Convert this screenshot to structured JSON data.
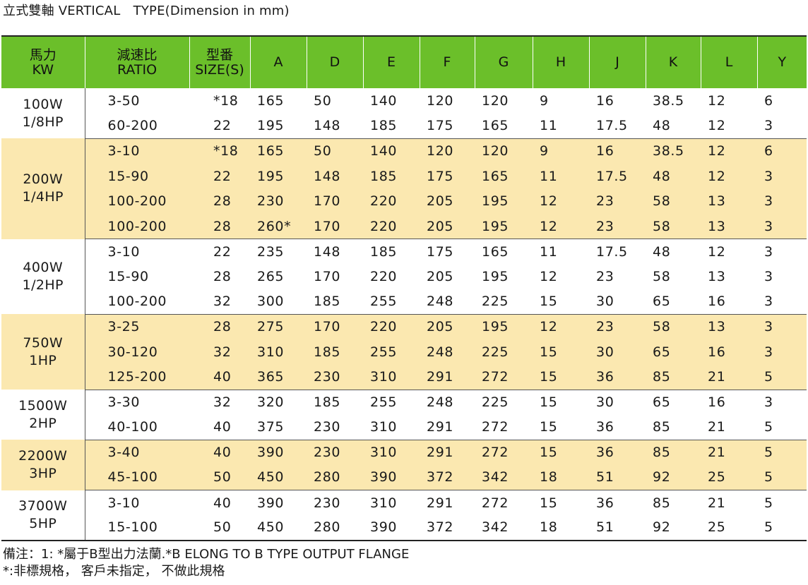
{
  "title": "立式雙軸 VERTICAL　TYPE(Dimension in mm)",
  "colors": {
    "header_bg": "#6bbf2a",
    "band_yellow": "#fbe8b0",
    "band_white": "#ffffff"
  },
  "headers": [
    [
      "馬力",
      "KW"
    ],
    [
      "減速比",
      "RATIO"
    ],
    [
      "型番",
      "SIZE(S)"
    ],
    [
      "A"
    ],
    [
      "D"
    ],
    [
      "E"
    ],
    [
      "F"
    ],
    [
      "G"
    ],
    [
      "H"
    ],
    [
      "J"
    ],
    [
      "K"
    ],
    [
      "L"
    ],
    [
      "Y"
    ]
  ],
  "groups": [
    {
      "power": [
        "100W",
        "1/8HP"
      ],
      "band": "white",
      "rows": [
        [
          "3-50",
          "*18",
          "165",
          "50",
          "140",
          "120",
          "120",
          "9",
          "16",
          "38.5",
          "12",
          "6"
        ],
        [
          "60-200",
          "22",
          "195",
          "148",
          "185",
          "175",
          "165",
          "11",
          "17.5",
          "48",
          "12",
          "3"
        ]
      ]
    },
    {
      "power": [
        "200W",
        "1/4HP"
      ],
      "band": "yellow",
      "rows": [
        [
          "3-10",
          "*18",
          "165",
          "50",
          "140",
          "120",
          "120",
          "9",
          "16",
          "38.5",
          "12",
          "6"
        ],
        [
          "15-90",
          "22",
          "195",
          "148",
          "185",
          "175",
          "165",
          "11",
          "17.5",
          "48",
          "12",
          "3"
        ],
        [
          "100-200",
          "28",
          "230",
          "170",
          "220",
          "205",
          "195",
          "12",
          "23",
          "58",
          "13",
          "3"
        ],
        [
          "100-200",
          "28",
          "260*",
          "170",
          "220",
          "205",
          "195",
          "12",
          "23",
          "58",
          "13",
          "3"
        ]
      ]
    },
    {
      "power": [
        "400W",
        "1/2HP"
      ],
      "band": "white",
      "rows": [
        [
          "3-10",
          "22",
          "235",
          "148",
          "185",
          "175",
          "165",
          "11",
          "17.5",
          "48",
          "12",
          "3"
        ],
        [
          "15-90",
          "28",
          "265",
          "170",
          "220",
          "205",
          "195",
          "12",
          "23",
          "58",
          "13",
          "3"
        ],
        [
          "100-200",
          "32",
          "300",
          "185",
          "255",
          "248",
          "225",
          "15",
          "30",
          "65",
          "16",
          "3"
        ]
      ]
    },
    {
      "power": [
        "750W",
        "1HP"
      ],
      "band": "yellow",
      "rows": [
        [
          "3-25",
          "28",
          "275",
          "170",
          "220",
          "205",
          "195",
          "12",
          "23",
          "58",
          "13",
          "3"
        ],
        [
          "30-120",
          "32",
          "310",
          "185",
          "255",
          "248",
          "225",
          "15",
          "30",
          "65",
          "16",
          "3"
        ],
        [
          "125-200",
          "40",
          "365",
          "230",
          "310",
          "291",
          "272",
          "15",
          "36",
          "85",
          "21",
          "5"
        ]
      ]
    },
    {
      "power": [
        "1500W",
        "2HP"
      ],
      "band": "white",
      "rows": [
        [
          "3-30",
          "32",
          "320",
          "185",
          "255",
          "248",
          "225",
          "15",
          "30",
          "65",
          "16",
          "3"
        ],
        [
          "40-100",
          "40",
          "375",
          "230",
          "310",
          "291",
          "272",
          "15",
          "36",
          "85",
          "21",
          "5"
        ]
      ]
    },
    {
      "power": [
        "2200W",
        "3HP"
      ],
      "band": "yellow",
      "rows": [
        [
          "3-40",
          "40",
          "390",
          "230",
          "310",
          "291",
          "272",
          "15",
          "36",
          "85",
          "21",
          "5"
        ],
        [
          "45-100",
          "50",
          "450",
          "280",
          "390",
          "372",
          "342",
          "18",
          "51",
          "92",
          "25",
          "5"
        ]
      ]
    },
    {
      "power": [
        "3700W",
        "5HP"
      ],
      "band": "white",
      "rows": [
        [
          "3-10",
          "40",
          "390",
          "230",
          "310",
          "291",
          "272",
          "15",
          "36",
          "85",
          "21",
          "5"
        ],
        [
          "15-100",
          "50",
          "450",
          "280",
          "390",
          "372",
          "342",
          "18",
          "51",
          "92",
          "25",
          "5"
        ]
      ]
    }
  ],
  "notes": [
    "備注：1:  *屬于B型出力法蘭.*B ELONG TO B TYPE OUTPUT FLANGE",
    "*:非標規格， 客戶未指定， 不做此規格"
  ]
}
